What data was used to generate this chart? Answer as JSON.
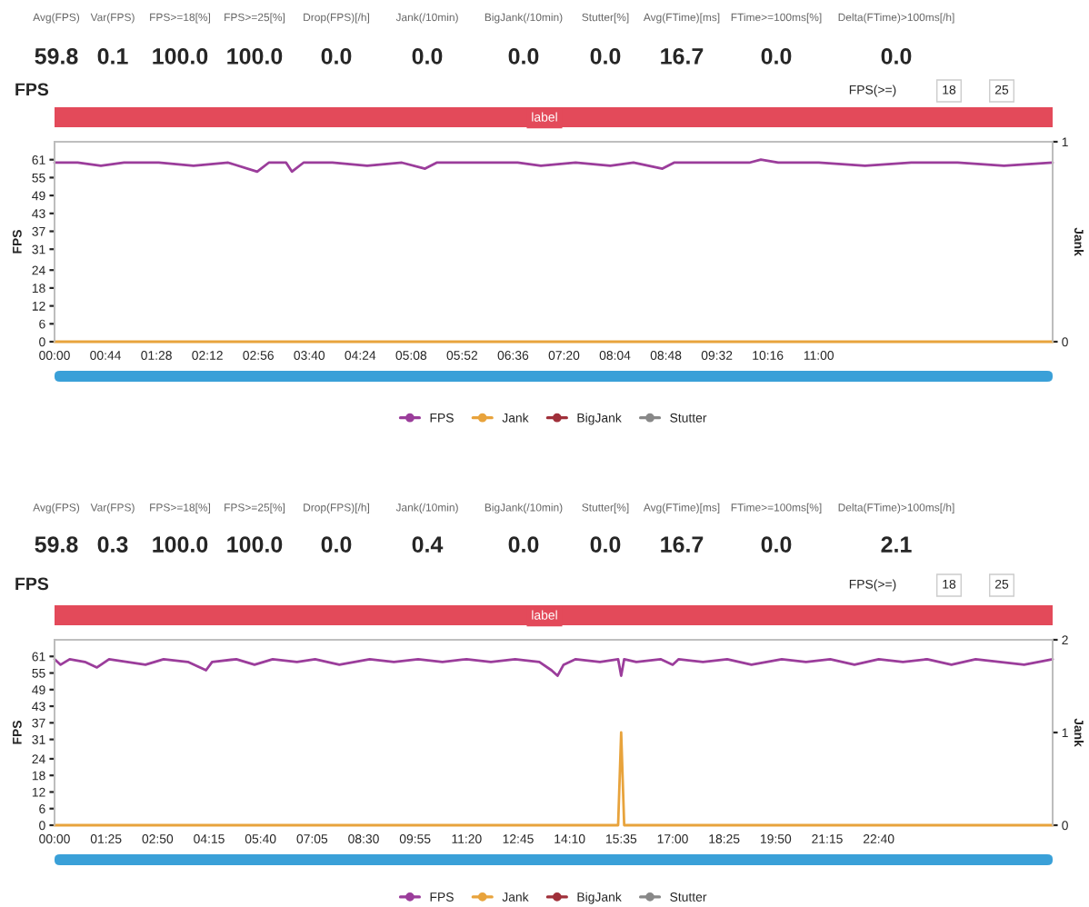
{
  "chart_data": [
    {
      "type": "other",
      "categories": [
        "Avg(FPS)",
        "Var(FPS)",
        "FPS>=18[%]",
        "FPS>=25[%]",
        "Drop(FPS)[/h]",
        "Jank(/10min)",
        "BigJank(/10min)",
        "Stutter[%]",
        "Avg(FTime)[ms]",
        "FTime>=100ms[%]",
        "Delta(FTime)>100ms[/h]"
      ],
      "value_labels": [
        "59.8",
        "0.1",
        "100.0",
        "100.0",
        "0.0",
        "0.0",
        "0.0",
        "0.0",
        "16.7",
        "0.0",
        "0.0"
      ]
    },
    {
      "type": "line",
      "title": "FPS",
      "ylabel": "FPS",
      "y2label": "Jank",
      "annotations": [
        "label",
        "FPS(>=)",
        "18",
        "25"
      ],
      "legend": "bottom",
      "xlim": [
        0,
        862
      ],
      "xticks": [
        {
          "value": 0,
          "label": "00:00"
        },
        {
          "value": 44,
          "label": "00:44"
        },
        {
          "value": 88,
          "label": "01:28"
        },
        {
          "value": 132,
          "label": "02:12"
        },
        {
          "value": 176,
          "label": "02:56"
        },
        {
          "value": 220,
          "label": "03:40"
        },
        {
          "value": 264,
          "label": "04:24"
        },
        {
          "value": 308,
          "label": "05:08"
        },
        {
          "value": 352,
          "label": "05:52"
        },
        {
          "value": 396,
          "label": "06:36"
        },
        {
          "value": 440,
          "label": "07:20"
        },
        {
          "value": 484,
          "label": "08:04"
        },
        {
          "value": 528,
          "label": "08:48"
        },
        {
          "value": 572,
          "label": "09:32"
        },
        {
          "value": 616,
          "label": "10:16"
        },
        {
          "value": 660,
          "label": "11:00"
        }
      ],
      "ylim": [
        0,
        67
      ],
      "yticks": [
        0,
        6,
        12,
        18,
        24,
        31,
        37,
        43,
        49,
        55,
        61
      ],
      "y2lim": [
        0,
        1
      ],
      "y2ticks": [
        0,
        1
      ],
      "series": [
        {
          "name": "FPS",
          "color": "#9b3d9b",
          "x": [
            0,
            20,
            40,
            60,
            90,
            120,
            150,
            175,
            185,
            200,
            205,
            215,
            240,
            270,
            300,
            320,
            330,
            360,
            400,
            420,
            450,
            480,
            500,
            525,
            535,
            570,
            600,
            610,
            625,
            660,
            700,
            740,
            780,
            820,
            862
          ],
          "values": [
            60,
            60,
            59,
            60,
            60,
            59,
            60,
            57,
            60,
            60,
            57,
            60,
            60,
            59,
            60,
            58,
            60,
            60,
            60,
            59,
            60,
            59,
            60,
            58,
            60,
            60,
            60,
            61,
            60,
            60,
            59,
            60,
            60,
            59,
            60
          ]
        },
        {
          "name": "Jank",
          "color": "#e8a33c",
          "axis": "y2",
          "x": [
            0,
            862
          ],
          "values": [
            0,
            0
          ]
        },
        {
          "name": "BigJank",
          "color": "#a0303a",
          "axis": "y2"
        },
        {
          "name": "Stutter",
          "color": "#888888",
          "axis": "y2"
        }
      ]
    },
    {
      "type": "other",
      "categories": [
        "Avg(FPS)",
        "Var(FPS)",
        "FPS>=18[%]",
        "FPS>=25[%]",
        "Drop(FPS)[/h]",
        "Jank(/10min)",
        "BigJank(/10min)",
        "Stutter[%]",
        "Avg(FTime)[ms]",
        "FTime>=100ms[%]",
        "Delta(FTime)>100ms[/h]"
      ],
      "value_labels": [
        "59.8",
        "0.3",
        "100.0",
        "100.0",
        "0.0",
        "0.4",
        "0.0",
        "0.0",
        "16.7",
        "0.0",
        "2.1"
      ]
    },
    {
      "type": "line",
      "title": "FPS",
      "ylabel": "FPS",
      "y2label": "Jank",
      "annotations": [
        "label",
        "FPS(>=)",
        "18",
        "25"
      ],
      "legend": "bottom",
      "xlim": [
        0,
        1647
      ],
      "xticks": [
        {
          "value": 0,
          "label": "00:00"
        },
        {
          "value": 85,
          "label": "01:25"
        },
        {
          "value": 170,
          "label": "02:50"
        },
        {
          "value": 255,
          "label": "04:15"
        },
        {
          "value": 340,
          "label": "05:40"
        },
        {
          "value": 425,
          "label": "07:05"
        },
        {
          "value": 510,
          "label": "08:30"
        },
        {
          "value": 595,
          "label": "09:55"
        },
        {
          "value": 680,
          "label": "11:20"
        },
        {
          "value": 765,
          "label": "12:45"
        },
        {
          "value": 850,
          "label": "14:10"
        },
        {
          "value": 935,
          "label": "15:35"
        },
        {
          "value": 1020,
          "label": "17:00"
        },
        {
          "value": 1105,
          "label": "18:25"
        },
        {
          "value": 1190,
          "label": "19:50"
        },
        {
          "value": 1275,
          "label": "21:15"
        },
        {
          "value": 1360,
          "label": "22:40"
        }
      ],
      "ylim": [
        0,
        67
      ],
      "yticks": [
        0,
        6,
        12,
        18,
        24,
        31,
        37,
        43,
        49,
        55,
        61
      ],
      "y2lim": [
        0,
        2
      ],
      "y2ticks": [
        0,
        1,
        2
      ],
      "series": [
        {
          "name": "FPS",
          "color": "#9b3d9b",
          "x": [
            0,
            10,
            25,
            50,
            70,
            90,
            120,
            150,
            180,
            220,
            250,
            260,
            300,
            330,
            360,
            400,
            430,
            470,
            520,
            560,
            600,
            640,
            680,
            720,
            760,
            800,
            820,
            830,
            840,
            860,
            900,
            930,
            935,
            940,
            960,
            1000,
            1020,
            1030,
            1070,
            1110,
            1150,
            1200,
            1240,
            1280,
            1320,
            1360,
            1400,
            1440,
            1480,
            1520,
            1560,
            1600,
            1647
          ],
          "values": [
            60,
            58,
            60,
            59,
            57,
            60,
            59,
            58,
            60,
            59,
            56,
            59,
            60,
            58,
            60,
            59,
            60,
            58,
            60,
            59,
            60,
            59,
            60,
            59,
            60,
            59,
            56,
            54,
            58,
            60,
            59,
            60,
            54,
            60,
            59,
            60,
            58,
            60,
            59,
            60,
            58,
            60,
            59,
            60,
            58,
            60,
            59,
            60,
            58,
            60,
            59,
            58,
            60
          ]
        },
        {
          "name": "Jank",
          "color": "#e8a33c",
          "axis": "y2",
          "x": [
            0,
            930,
            935,
            940,
            1647
          ],
          "values": [
            0,
            0,
            1,
            0,
            0
          ]
        },
        {
          "name": "BigJank",
          "color": "#a0303a",
          "axis": "y2"
        },
        {
          "name": "Stutter",
          "color": "#888888",
          "axis": "y2"
        }
      ]
    }
  ]
}
